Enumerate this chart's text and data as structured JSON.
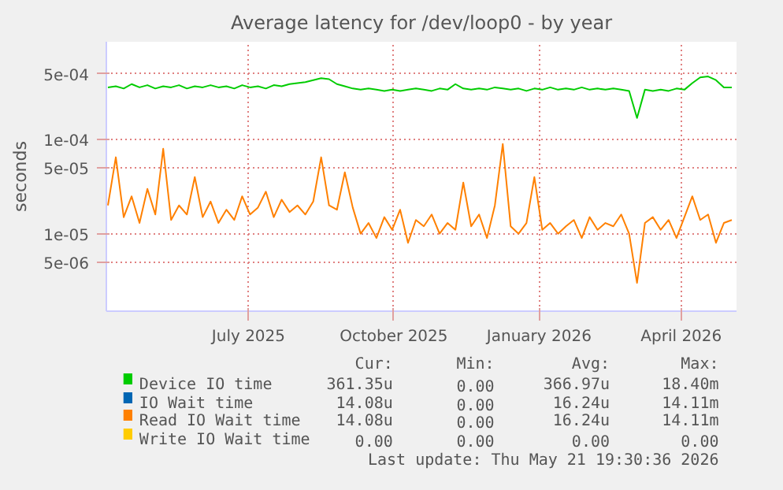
{
  "chart_data": {
    "type": "line",
    "title": "Average latency for /dev/loop0 - by year",
    "ylabel": "seconds",
    "log": "y",
    "grid": true,
    "legend": "bottom",
    "xlim": [
      "2025-04-17",
      "2026-05-21"
    ],
    "xticks": [
      {
        "value": "2025-07-16",
        "label": "July 2025"
      },
      {
        "value": "2025-10-16",
        "label": "October 2025"
      },
      {
        "value": "2026-01-16",
        "label": "January 2026"
      },
      {
        "value": "2026-04-16",
        "label": "April 2026"
      }
    ],
    "ylim": [
      1.5e-06,
      0.0011
    ],
    "yticks": [
      {
        "value": 5e-06,
        "label": "5e-06"
      },
      {
        "value": 1e-05,
        "label": "1e-05"
      },
      {
        "value": 5e-05,
        "label": "5e-05"
      },
      {
        "value": 0.0001,
        "label": "1e-04"
      },
      {
        "value": 0.0005,
        "label": "5e-04"
      }
    ],
    "x": [
      "2025-04-18",
      "2025-04-23",
      "2025-04-28",
      "2025-05-03",
      "2025-05-08",
      "2025-05-13",
      "2025-05-18",
      "2025-05-23",
      "2025-05-28",
      "2025-06-02",
      "2025-06-07",
      "2025-06-12",
      "2025-06-17",
      "2025-06-22",
      "2025-06-27",
      "2025-07-02",
      "2025-07-07",
      "2025-07-12",
      "2025-07-17",
      "2025-07-22",
      "2025-07-27",
      "2025-08-01",
      "2025-08-06",
      "2025-08-11",
      "2025-08-16",
      "2025-08-21",
      "2025-08-26",
      "2025-08-31",
      "2025-09-05",
      "2025-09-10",
      "2025-09-15",
      "2025-09-20",
      "2025-09-25",
      "2025-09-30",
      "2025-10-05",
      "2025-10-10",
      "2025-10-15",
      "2025-10-20",
      "2025-10-25",
      "2025-10-30",
      "2025-11-04",
      "2025-11-09",
      "2025-11-14",
      "2025-11-19",
      "2025-11-24",
      "2025-11-29",
      "2025-12-04",
      "2025-12-09",
      "2025-12-14",
      "2025-12-19",
      "2025-12-24",
      "2025-12-29",
      "2026-01-03",
      "2026-01-08",
      "2026-01-13",
      "2026-01-18",
      "2026-01-23",
      "2026-01-28",
      "2026-02-02",
      "2026-02-07",
      "2026-02-12",
      "2026-02-17",
      "2026-02-22",
      "2026-02-27",
      "2026-03-04",
      "2026-03-09",
      "2026-03-14",
      "2026-03-19",
      "2026-03-24",
      "2026-03-29",
      "2026-04-03",
      "2026-04-08",
      "2026-04-13",
      "2026-04-18",
      "2026-04-23",
      "2026-04-28",
      "2026-05-03",
      "2026-05-08",
      "2026-05-13",
      "2026-05-18"
    ],
    "series": [
      {
        "name": "Device IO time",
        "color": "#00cc00",
        "values": [
          0.00036,
          0.00037,
          0.00035,
          0.00039,
          0.00036,
          0.00038,
          0.00035,
          0.00037,
          0.00036,
          0.00038,
          0.00035,
          0.00037,
          0.00036,
          0.00038,
          0.00036,
          0.00037,
          0.00035,
          0.00038,
          0.00036,
          0.00037,
          0.00035,
          0.00038,
          0.00037,
          0.00039,
          0.0004,
          0.00041,
          0.00043,
          0.00045,
          0.00044,
          0.00039,
          0.00037,
          0.00035,
          0.00034,
          0.00035,
          0.00034,
          0.00033,
          0.00034,
          0.00033,
          0.00034,
          0.00035,
          0.00034,
          0.00033,
          0.00035,
          0.00034,
          0.00039,
          0.00035,
          0.00034,
          0.00035,
          0.00034,
          0.00036,
          0.00035,
          0.00034,
          0.00035,
          0.00033,
          0.00035,
          0.00034,
          0.00036,
          0.00034,
          0.00035,
          0.00034,
          0.00036,
          0.00034,
          0.00035,
          0.00034,
          0.00035,
          0.00034,
          0.00033,
          0.00017,
          0.00034,
          0.00033,
          0.00034,
          0.00033,
          0.00035,
          0.00034,
          0.0004,
          0.00046,
          0.00047,
          0.00043,
          0.00036,
          0.00036
        ]
      },
      {
        "name": "IO Wait time",
        "color": "#0066b3",
        "values": [
          null,
          null,
          null,
          null,
          null,
          null,
          null,
          null,
          null,
          null,
          null,
          null,
          null,
          null,
          null,
          null,
          null,
          null,
          null,
          null,
          null,
          null,
          null,
          null,
          null,
          null,
          null,
          null,
          null,
          null,
          null,
          null,
          null,
          null,
          null,
          null,
          null,
          null,
          null,
          null,
          null,
          null,
          null,
          null,
          null,
          null,
          null,
          null,
          null,
          null,
          null,
          null,
          null,
          null,
          null,
          null,
          null,
          null,
          null,
          null,
          null,
          null,
          null,
          null,
          null,
          null,
          null,
          null,
          null,
          null,
          null,
          null,
          null,
          null,
          null,
          null,
          null,
          null,
          null,
          null
        ]
      },
      {
        "name": "Read IO Wait time",
        "color": "#ff8000",
        "values": [
          2e-05,
          6.5e-05,
          1.5e-05,
          2.5e-05,
          1.3e-05,
          3e-05,
          1.6e-05,
          8e-05,
          1.4e-05,
          2e-05,
          1.6e-05,
          4e-05,
          1.5e-05,
          2.2e-05,
          1.3e-05,
          1.8e-05,
          1.4e-05,
          2.5e-05,
          1.6e-05,
          1.9e-05,
          2.8e-05,
          1.5e-05,
          2.3e-05,
          1.7e-05,
          2e-05,
          1.6e-05,
          2.2e-05,
          6.5e-05,
          2e-05,
          1.8e-05,
          4.5e-05,
          1.9e-05,
          1e-05,
          1.3e-05,
          9e-06,
          1.5e-05,
          1.1e-05,
          1.8e-05,
          8e-06,
          1.4e-05,
          1.2e-05,
          1.6e-05,
          1e-05,
          1.3e-05,
          1.1e-05,
          3.5e-05,
          1.2e-05,
          1.6e-05,
          9e-06,
          2e-05,
          9e-05,
          1.2e-05,
          1e-05,
          1.3e-05,
          4e-05,
          1.1e-05,
          1.3e-05,
          1e-05,
          1.2e-05,
          1.4e-05,
          9e-06,
          1.5e-05,
          1.1e-05,
          1.3e-05,
          1.2e-05,
          1.6e-05,
          1e-05,
          3e-06,
          1.3e-05,
          1.5e-05,
          1.1e-05,
          1.4e-05,
          9e-06,
          1.5e-05,
          2.5e-05,
          1.4e-05,
          1.6e-05,
          8e-06,
          1.3e-05,
          1.4e-05
        ]
      },
      {
        "name": "Write IO Wait time",
        "color": "#ffcc00",
        "values": [
          null,
          null,
          null,
          null,
          null,
          null,
          null,
          null,
          null,
          null,
          null,
          null,
          null,
          null,
          null,
          null,
          null,
          null,
          null,
          null,
          null,
          null,
          null,
          null,
          null,
          null,
          null,
          null,
          null,
          null,
          null,
          null,
          null,
          null,
          null,
          null,
          null,
          null,
          null,
          null,
          null,
          null,
          null,
          null,
          null,
          null,
          null,
          null,
          null,
          null,
          null,
          null,
          null,
          null,
          null,
          null,
          null,
          null,
          null,
          null,
          null,
          null,
          null,
          null,
          null,
          null,
          null,
          null,
          null,
          null,
          null,
          null,
          null,
          null,
          null,
          null,
          null,
          null,
          null,
          null
        ]
      }
    ],
    "annotations": [
      "Cur:",
      "Min:",
      "Avg:",
      "Max:",
      "361.35u",
      "0.00",
      "366.97u",
      "18.40m",
      "14.08u",
      "0.00",
      "16.24u",
      "14.11m",
      "14.08u",
      "0.00",
      "16.24u",
      "14.11m",
      "0.00",
      "0.00",
      "0.00",
      "0.00",
      "Last update: Thu May 21 19:30:36 2026"
    ]
  }
}
